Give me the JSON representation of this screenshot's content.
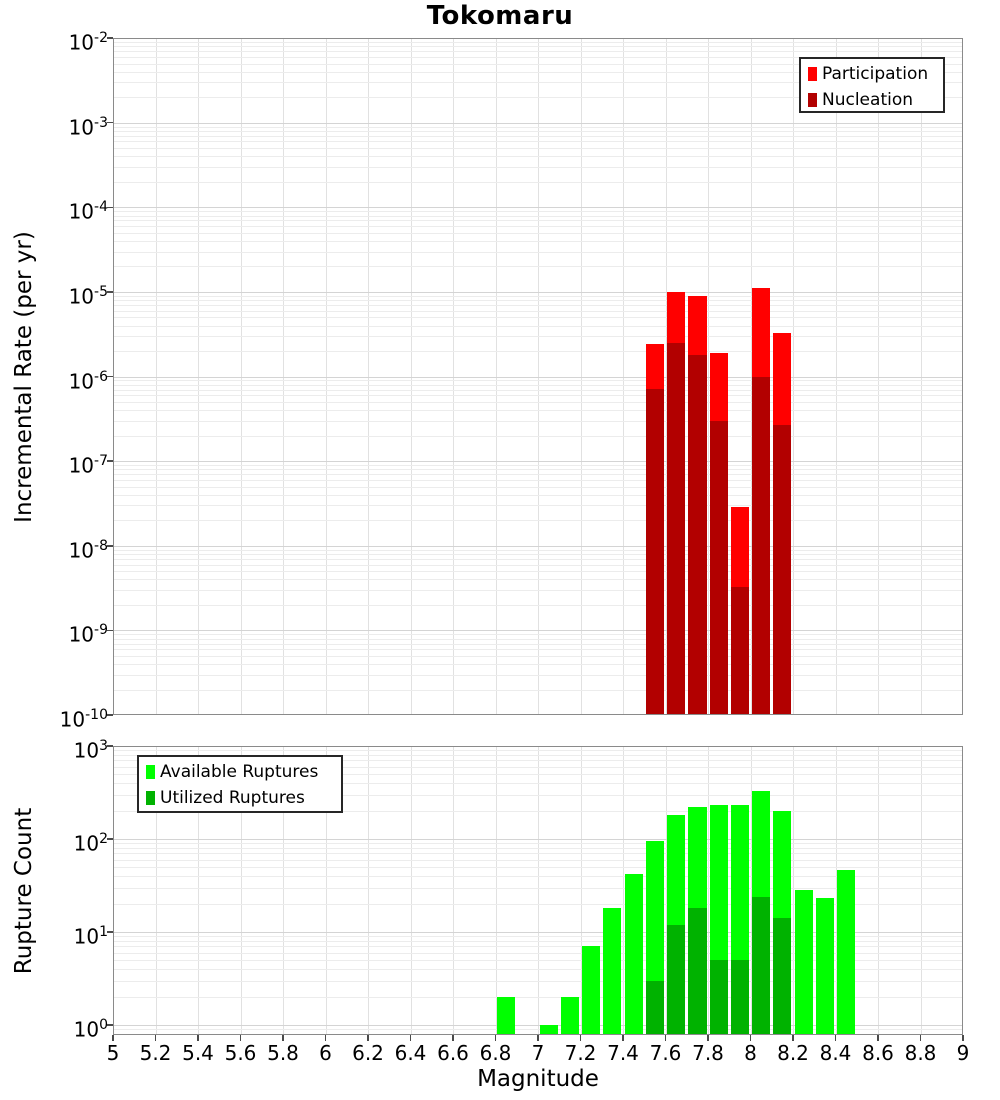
{
  "title": "Tokomaru",
  "colors": {
    "participation": "#FF0000",
    "nucleation": "#B20000",
    "available": "#00FF00",
    "utilized": "#00B200",
    "grid_minor": "#ececec",
    "grid_major": "#d4d4d4",
    "plot_border": "#8a8a8a"
  },
  "chart_data": [
    {
      "type": "bar",
      "title": "Tokomaru",
      "xlabel": "",
      "ylabel": "Incremental Rate (per yr)",
      "yscale": "log",
      "ylim": [
        1e-10,
        0.01
      ],
      "xlim": [
        5,
        9
      ],
      "bin_width": 0.1,
      "x_grid_step": 0.2,
      "grid": true,
      "legend_position": "top-right",
      "ytick_exponents": [
        -2,
        -3,
        -4,
        -5,
        -6,
        -7,
        -8,
        -9,
        -10
      ],
      "xticks": [],
      "xtick_labels": [],
      "legend": [
        {
          "label": "Participation",
          "color": "#FF0000"
        },
        {
          "label": "Nucleation",
          "color": "#B20000"
        }
      ],
      "series": [
        {
          "name": "Participation",
          "color": "#FF0000",
          "points": [
            [
              7.5,
              2.4e-06
            ],
            [
              7.6,
              1e-05
            ],
            [
              7.7,
              9e-06
            ],
            [
              7.8,
              1.9e-06
            ],
            [
              7.9,
              2.9e-08
            ],
            [
              8.0,
              1.1e-05
            ],
            [
              8.1,
              3.3e-06
            ]
          ]
        },
        {
          "name": "Nucleation",
          "color": "#B20000",
          "points": [
            [
              7.5,
              7.2e-07
            ],
            [
              7.6,
              2.5e-06
            ],
            [
              7.7,
              1.8e-06
            ],
            [
              7.8,
              3e-07
            ],
            [
              7.9,
              3.3e-09
            ],
            [
              8.0,
              1e-06
            ],
            [
              8.1,
              2.7e-07
            ]
          ]
        }
      ]
    },
    {
      "type": "bar",
      "title": "",
      "xlabel": "Magnitude",
      "ylabel": "Rupture Count",
      "yscale": "log",
      "ylim": [
        0.78,
        1000
      ],
      "xlim": [
        5,
        9
      ],
      "bin_width": 0.1,
      "x_grid_step": 0.2,
      "grid": true,
      "legend_position": "top-left",
      "ytick_exponents": [
        0,
        1,
        2,
        3
      ],
      "xticks": [
        5,
        5.2,
        5.4,
        5.6,
        5.8,
        6,
        6.2,
        6.4,
        6.6,
        6.8,
        7,
        7.2,
        7.4,
        7.6,
        7.8,
        8,
        8.2,
        8.4,
        8.6,
        8.8,
        9
      ],
      "xtick_labels": [
        "5",
        "5.2",
        "5.4",
        "5.6",
        "5.8",
        "6",
        "6.2",
        "6.4",
        "6.6",
        "6.8",
        "7",
        "7.2",
        "7.4",
        "7.6",
        "7.8",
        "8",
        "8.2",
        "8.4",
        "8.6",
        "8.8",
        "9"
      ],
      "legend": [
        {
          "label": "Available Ruptures",
          "color": "#00FF00"
        },
        {
          "label": "Utilized Ruptures",
          "color": "#00B200"
        }
      ],
      "series": [
        {
          "name": "Available Ruptures",
          "color": "#00FF00",
          "points": [
            [
              6.8,
              2
            ],
            [
              7.0,
              1
            ],
            [
              7.1,
              2
            ],
            [
              7.2,
              7
            ],
            [
              7.3,
              18
            ],
            [
              7.4,
              42
            ],
            [
              7.5,
              95
            ],
            [
              7.6,
              180
            ],
            [
              7.7,
              220
            ],
            [
              7.8,
              235
            ],
            [
              7.9,
              235
            ],
            [
              8.0,
              330
            ],
            [
              8.1,
              200
            ],
            [
              8.2,
              28
            ],
            [
              8.3,
              23
            ],
            [
              8.4,
              47
            ]
          ]
        },
        {
          "name": "Utilized Ruptures",
          "color": "#00B200",
          "points": [
            [
              7.5,
              3
            ],
            [
              7.6,
              12
            ],
            [
              7.7,
              18
            ],
            [
              7.8,
              5
            ],
            [
              7.9,
              5
            ],
            [
              8.0,
              24
            ],
            [
              8.1,
              14
            ]
          ]
        }
      ]
    }
  ]
}
